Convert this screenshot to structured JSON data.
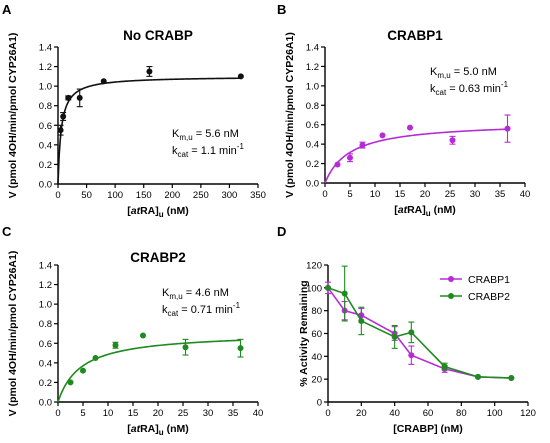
{
  "figure": {
    "shared_ylabel": "V (pmol 4OH/min/pmol CYP26A1)",
    "shared_xlabel_main": "[",
    "shared_xlabel_italic": "at",
    "shared_xlabel_tail": "RA]",
    "shared_xlabel_sub": "u",
    "shared_xlabel_unit": " (nM)",
    "km_main": "K",
    "km_sub": "m,u",
    "kcat_main": "k",
    "kcat_sub": "cat"
  },
  "chart_data": [
    {
      "panel": "A",
      "type": "scatter",
      "title": "No CRABP",
      "xlabel": "[atRA]u (nM)",
      "ylabel": "V (pmol 4OH/min/pmol CYP26A1)",
      "xlim": [
        0,
        350
      ],
      "ylim": [
        0,
        1.4
      ],
      "xticks": [
        0,
        50,
        100,
        150,
        200,
        250,
        300,
        350
      ],
      "yticks": [
        0.0,
        0.2,
        0.4,
        0.6,
        0.8,
        1.0,
        1.2,
        1.4
      ],
      "ytick_labels": [
        "0.0",
        "0.2",
        "0.4",
        "0.6",
        "0.8",
        "1.0",
        "1.2",
        "1.4"
      ],
      "color": "#111111",
      "fit": {
        "model": "Michaelis-Menten",
        "Vmax": 1.1,
        "Km": 5.6
      },
      "points": [
        {
          "x": 4.5,
          "y": 0.55,
          "err": 0.05
        },
        {
          "x": 9,
          "y": 0.69,
          "err": 0.04
        },
        {
          "x": 18,
          "y": 0.88,
          "err": 0.02
        },
        {
          "x": 38,
          "y": 0.88,
          "err": 0.09
        },
        {
          "x": 80,
          "y": 1.05,
          "err": 0.0
        },
        {
          "x": 160,
          "y": 1.15,
          "err": 0.05
        },
        {
          "x": 320,
          "y": 1.1,
          "err": 0.0
        }
      ],
      "annotation": {
        "km_value": " = 5.6 nM",
        "kcat_value": " = 1.1 min",
        "kcat_sup": "-1"
      }
    },
    {
      "panel": "B",
      "type": "scatter",
      "title": "CRABP1",
      "xlabel": "[atRA]u (nM)",
      "ylabel": "V (pmol 4OH/min/pmol CYP26A1)",
      "xlim": [
        0,
        40
      ],
      "ylim": [
        0,
        1.4
      ],
      "xticks": [
        0,
        5,
        10,
        15,
        20,
        25,
        30,
        35,
        40
      ],
      "yticks": [
        0.0,
        0.2,
        0.4,
        0.6,
        0.8,
        1.0,
        1.2,
        1.4
      ],
      "ytick_labels": [
        "0.0",
        "0.2",
        "0.4",
        "0.6",
        "0.8",
        "1.0",
        "1.2",
        "1.4"
      ],
      "color": "#b52cd6",
      "fit": {
        "model": "Michaelis-Menten",
        "Vmax": 0.63,
        "Km": 5.0
      },
      "points": [
        {
          "x": 2.5,
          "y": 0.19,
          "err": 0.0
        },
        {
          "x": 5,
          "y": 0.26,
          "err": 0.04
        },
        {
          "x": 7.5,
          "y": 0.39,
          "err": 0.03
        },
        {
          "x": 11.5,
          "y": 0.49,
          "err": 0.0
        },
        {
          "x": 17,
          "y": 0.57,
          "err": 0.0
        },
        {
          "x": 25.5,
          "y": 0.44,
          "err": 0.04
        },
        {
          "x": 36.5,
          "y": 0.56,
          "err": 0.14
        }
      ],
      "annotation": {
        "km_value": " = 5.0 nM",
        "kcat_value": " = 0.63 min",
        "kcat_sup": "-1"
      }
    },
    {
      "panel": "C",
      "type": "scatter",
      "title": "CRABP2",
      "xlabel": "[atRA]u (nM)",
      "ylabel": "V (pmol 4OH/min/pmol CYP26A1)",
      "xlim": [
        0,
        40
      ],
      "ylim": [
        0,
        1.4
      ],
      "xticks": [
        0,
        5,
        10,
        15,
        20,
        25,
        30,
        35,
        40
      ],
      "yticks": [
        0.0,
        0.2,
        0.4,
        0.6,
        0.8,
        1.0,
        1.2,
        1.4
      ],
      "ytick_labels": [
        "0.0",
        "0.2",
        "0.4",
        "0.6",
        "0.8",
        "1.0",
        "1.2",
        "1.4"
      ],
      "color": "#1f8a1f",
      "fit": {
        "model": "Michaelis-Menten",
        "Vmax": 0.71,
        "Km": 4.6
      },
      "points": [
        {
          "x": 2.5,
          "y": 0.2,
          "err": 0.0
        },
        {
          "x": 5,
          "y": 0.32,
          "err": 0.0
        },
        {
          "x": 7.5,
          "y": 0.45,
          "err": 0.0
        },
        {
          "x": 11.5,
          "y": 0.58,
          "err": 0.03
        },
        {
          "x": 17,
          "y": 0.68,
          "err": 0.0
        },
        {
          "x": 25.5,
          "y": 0.56,
          "err": 0.08
        },
        {
          "x": 36.5,
          "y": 0.55,
          "err": 0.09
        }
      ],
      "annotation": {
        "km_value": " = 4.6 nM",
        "kcat_value": " = 0.71 min",
        "kcat_sup": "-1"
      }
    },
    {
      "panel": "D",
      "type": "line",
      "title": "",
      "xlabel": "[CRABP] (nM)",
      "ylabel": "% Activity Remaining",
      "xlim": [
        0,
        120
      ],
      "ylim": [
        0,
        120
      ],
      "xticks": [
        0,
        20,
        40,
        60,
        80,
        100,
        120
      ],
      "yticks": [
        0,
        20,
        40,
        60,
        80,
        100,
        120
      ],
      "ytick_labels": [
        "0",
        "20",
        "40",
        "60",
        "80",
        "100",
        "120"
      ],
      "legend_position": "top-right",
      "series": [
        {
          "name": "CRABP1",
          "color": "#b52cd6",
          "points": [
            {
              "x": 0,
              "y": 100,
              "err": 5
            },
            {
              "x": 10,
              "y": 80,
              "err": 8
            },
            {
              "x": 20,
              "y": 76,
              "err": 6
            },
            {
              "x": 40,
              "y": 60,
              "err": 6
            },
            {
              "x": 50,
              "y": 41,
              "err": 8
            },
            {
              "x": 70,
              "y": 29,
              "err": 3
            },
            {
              "x": 90,
              "y": 22,
              "err": 0
            },
            {
              "x": 110,
              "y": 21,
              "err": 0
            }
          ]
        },
        {
          "name": "CRABP2",
          "color": "#1f8a1f",
          "points": [
            {
              "x": 0,
              "y": 100,
              "err": 0
            },
            {
              "x": 10,
              "y": 95,
              "err": 24
            },
            {
              "x": 20,
              "y": 71,
              "err": 12
            },
            {
              "x": 40,
              "y": 57,
              "err": 10
            },
            {
              "x": 50,
              "y": 61,
              "err": 9
            },
            {
              "x": 70,
              "y": 31,
              "err": 3
            },
            {
              "x": 90,
              "y": 22,
              "err": 0
            },
            {
              "x": 110,
              "y": 21,
              "err": 0
            }
          ]
        }
      ]
    }
  ]
}
